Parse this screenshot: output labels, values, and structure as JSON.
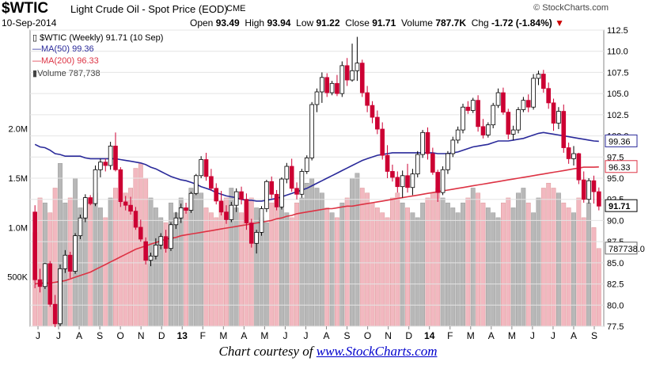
{
  "header": {
    "symbol": "$WTIC",
    "name": "Light Crude Oil - Spot Price (EOD)",
    "exchange": "CME",
    "brand": "© StockCharts.com",
    "date": "10-Sep-2014",
    "open_label": "Open",
    "open": "93.49",
    "high_label": "High",
    "high": "93.94",
    "low_label": "Low",
    "low": "91.22",
    "close_label": "Close",
    "close": "91.71",
    "volume_label": "Volume",
    "volume": "787.7K",
    "chg_label": "Chg",
    "chg": "-1.72 (-1.84%)",
    "chg_arrow": "▼"
  },
  "legend": {
    "main": "$WTIC (Weekly) 91.71 (10 Sep)",
    "ma50": "MA(50) 99.36",
    "ma200": "MA(200) 96.33",
    "volume": "Volume 787,738"
  },
  "credit": {
    "prefix": "Chart courtesy of ",
    "link": "www.StockCharts.com"
  },
  "colors": {
    "up": "#ffffff",
    "down": "#cc0033",
    "ma50": "#2a2a9a",
    "ma200": "#dd3344",
    "vol_up": "#b8b8b8",
    "vol_down": "#f2b8c0"
  },
  "chart_data": {
    "type": "candlestick",
    "ylim": [
      77.5,
      112.5
    ],
    "price_ticks": [
      "112.5",
      "110.0",
      "107.5",
      "105.0",
      "102.5",
      "100.0",
      "97.5",
      "95.0",
      "92.5",
      "90.0",
      "87.5",
      "85.0",
      "82.5",
      "80.0",
      "77.5"
    ],
    "volume_ticks": [
      "2.0M",
      "1.5M",
      "1.0M",
      "500K"
    ],
    "volume_ylim": [
      0,
      3000000
    ],
    "x_labels": [
      "J",
      "J",
      "A",
      "S",
      "O",
      "N",
      "D",
      "13",
      "F",
      "M",
      "A",
      "M",
      "J",
      "J",
      "A",
      "S",
      "O",
      "N",
      "D",
      "14",
      "F",
      "M",
      "A",
      "M",
      "J",
      "J",
      "A",
      "S"
    ],
    "price_flags": {
      "ma50": "99.36",
      "ma200": "96.33",
      "close": "91.71",
      "volume": "787738.0"
    },
    "series": [
      {
        "name": "$WTIC",
        "ohlc": [
          [
            91.0,
            91.8,
            82.0,
            83.0
          ],
          [
            83.0,
            84.3,
            81.5,
            82.2
          ],
          [
            82.2,
            85.0,
            81.9,
            84.9
          ],
          [
            84.9,
            85.2,
            79.8,
            80.1
          ],
          [
            80.1,
            81.2,
            77.4,
            77.8
          ],
          [
            77.8,
            84.8,
            77.5,
            84.3
          ],
          [
            84.3,
            86.5,
            83.8,
            85.9
          ],
          [
            85.9,
            86.3,
            83.2,
            84.0
          ],
          [
            84.0,
            88.5,
            83.7,
            88.2
          ],
          [
            88.2,
            90.7,
            87.8,
            90.3
          ],
          [
            90.3,
            93.1,
            89.8,
            92.7
          ],
          [
            92.7,
            93.0,
            91.8,
            92.0
          ],
          [
            92.0,
            96.5,
            91.7,
            96.0
          ],
          [
            96.0,
            97.3,
            95.1,
            96.9
          ],
          [
            96.9,
            97.3,
            95.8,
            96.5
          ],
          [
            96.5,
            99.3,
            96.0,
            98.8
          ],
          [
            98.8,
            100.4,
            95.8,
            96.0
          ],
          [
            96.0,
            96.3,
            91.6,
            92.2
          ],
          [
            92.2,
            92.9,
            91.2,
            91.8
          ],
          [
            91.8,
            92.8,
            90.7,
            91.1
          ],
          [
            91.1,
            91.6,
            88.9,
            89.2
          ],
          [
            89.2,
            90.1,
            87.5,
            87.8
          ],
          [
            87.5,
            88.0,
            84.8,
            85.3
          ],
          [
            85.3,
            86.2,
            84.6,
            85.8
          ],
          [
            85.8,
            87.9,
            85.4,
            87.1
          ],
          [
            87.1,
            88.5,
            86.6,
            88.1
          ],
          [
            88.1,
            88.9,
            86.2,
            86.7
          ],
          [
            86.7,
            89.8,
            86.4,
            89.5
          ],
          [
            89.5,
            91.0,
            89.0,
            90.3
          ],
          [
            90.3,
            92.0,
            89.7,
            91.5
          ],
          [
            91.5,
            92.1,
            90.8,
            91.2
          ],
          [
            91.2,
            93.4,
            90.9,
            93.2
          ],
          [
            93.2,
            95.5,
            93.0,
            95.3
          ],
          [
            95.3,
            97.6,
            95.0,
            97.2
          ],
          [
            97.2,
            98.0,
            94.7,
            95.2
          ],
          [
            95.2,
            96.1,
            93.5,
            93.8
          ],
          [
            93.8,
            94.4,
            91.9,
            92.3
          ],
          [
            92.3,
            93.5,
            90.6,
            91.0
          ],
          [
            91.0,
            91.8,
            89.6,
            90.1
          ],
          [
            90.1,
            92.2,
            89.8,
            91.8
          ],
          [
            91.8,
            93.8,
            91.0,
            93.4
          ],
          [
            93.4,
            94.0,
            91.9,
            92.5
          ],
          [
            92.5,
            93.2,
            88.9,
            89.7
          ],
          [
            89.7,
            90.2,
            86.8,
            87.3
          ],
          [
            87.3,
            88.9,
            86.1,
            88.6
          ],
          [
            88.6,
            91.7,
            88.2,
            91.4
          ],
          [
            91.4,
            94.8,
            91.0,
            94.6
          ],
          [
            94.6,
            95.2,
            92.6,
            93.1
          ],
          [
            93.1,
            93.6,
            91.2,
            91.6
          ],
          [
            91.6,
            95.1,
            91.3,
            94.9
          ],
          [
            94.9,
            96.8,
            94.4,
            96.4
          ],
          [
            96.4,
            97.3,
            93.4,
            93.8
          ],
          [
            93.8,
            94.5,
            92.5,
            93.1
          ],
          [
            93.1,
            96.1,
            92.7,
            95.8
          ],
          [
            95.8,
            97.7,
            95.5,
            97.4
          ],
          [
            97.4,
            104.0,
            97.1,
            103.7
          ],
          [
            103.7,
            105.6,
            102.8,
            105.2
          ],
          [
            105.2,
            107.5,
            103.9,
            106.9
          ],
          [
            106.9,
            107.4,
            104.6,
            105.1
          ],
          [
            105.1,
            106.5,
            104.8,
            106.2
          ],
          [
            106.2,
            107.2,
            104.7,
            105.0
          ],
          [
            105.0,
            108.8,
            104.6,
            108.3
          ],
          [
            108.3,
            109.2,
            105.9,
            106.6
          ],
          [
            106.6,
            110.9,
            106.4,
            107.7
          ],
          [
            107.7,
            111.7,
            106.5,
            108.6
          ],
          [
            108.6,
            109.0,
            104.6,
            105.1
          ],
          [
            105.1,
            105.9,
            102.8,
            103.6
          ],
          [
            103.6,
            104.1,
            101.5,
            102.2
          ],
          [
            102.2,
            103.0,
            100.2,
            100.8
          ],
          [
            100.8,
            101.6,
            97.2,
            97.7
          ],
          [
            97.7,
            98.9,
            95.0,
            95.8
          ],
          [
            95.8,
            96.6,
            94.6,
            95.1
          ],
          [
            95.1,
            95.8,
            93.3,
            94.0
          ],
          [
            94.0,
            95.9,
            92.7,
            95.3
          ],
          [
            95.3,
            96.7,
            93.3,
            93.9
          ],
          [
            93.9,
            96.1,
            93.0,
            95.5
          ],
          [
            95.5,
            98.2,
            95.1,
            97.8
          ],
          [
            97.8,
            100.7,
            97.4,
            100.4
          ],
          [
            100.4,
            101.0,
            97.2,
            97.9
          ],
          [
            97.9,
            98.6,
            95.4,
            95.7
          ],
          [
            95.7,
            96.0,
            92.2,
            93.3
          ],
          [
            93.3,
            96.4,
            93.0,
            96.0
          ],
          [
            96.0,
            98.2,
            95.5,
            97.9
          ],
          [
            97.9,
            99.9,
            97.5,
            99.5
          ],
          [
            99.5,
            101.1,
            99.1,
            100.7
          ],
          [
            100.7,
            103.8,
            100.3,
            103.4
          ],
          [
            103.4,
            104.1,
            102.6,
            103.0
          ],
          [
            103.0,
            104.5,
            102.7,
            104.2
          ],
          [
            104.2,
            104.8,
            100.5,
            101.1
          ],
          [
            101.1,
            102.0,
            99.7,
            100.1
          ],
          [
            100.1,
            101.6,
            99.8,
            101.3
          ],
          [
            101.3,
            103.9,
            100.9,
            103.6
          ],
          [
            103.6,
            105.6,
            103.3,
            105.1
          ],
          [
            105.1,
            105.7,
            102.5,
            102.8
          ],
          [
            102.8,
            103.2,
            99.6,
            100.2
          ],
          [
            100.2,
            101.2,
            99.5,
            100.7
          ],
          [
            100.7,
            103.4,
            100.3,
            103.1
          ],
          [
            103.1,
            104.6,
            102.8,
            104.2
          ],
          [
            104.2,
            104.9,
            102.8,
            103.4
          ],
          [
            103.4,
            107.3,
            103.1,
            106.8
          ],
          [
            106.8,
            107.7,
            106.0,
            107.3
          ],
          [
            107.3,
            107.8,
            105.1,
            105.6
          ],
          [
            105.6,
            106.3,
            103.2,
            103.9
          ],
          [
            103.9,
            104.4,
            100.6,
            101.5
          ],
          [
            101.5,
            103.4,
            100.8,
            102.9
          ],
          [
            102.9,
            103.7,
            98.0,
            98.6
          ],
          [
            98.6,
            99.2,
            96.7,
            97.3
          ],
          [
            97.3,
            98.8,
            96.5,
            97.9
          ],
          [
            97.9,
            98.0,
            94.3,
            94.8
          ],
          [
            94.8,
            95.8,
            92.1,
            92.5
          ],
          [
            92.5,
            95.0,
            92.0,
            94.7
          ],
          [
            94.7,
            95.3,
            92.0,
            93.4
          ],
          [
            93.4,
            93.9,
            91.2,
            91.7
          ]
        ],
        "ma50": [
          99.0,
          98.7,
          98.6,
          98.3,
          97.9,
          97.8,
          97.6,
          97.6,
          97.6,
          97.6,
          97.4,
          97.3,
          97.3,
          97.3,
          97.3,
          97.3,
          97.3,
          97.2,
          97.1,
          97.0,
          96.9,
          96.8,
          96.6,
          96.3,
          96.1,
          95.8,
          95.5,
          95.2,
          95.0,
          94.8,
          94.7,
          94.5,
          94.3,
          94.0,
          93.8,
          93.6,
          93.3,
          93.1,
          92.9,
          92.8,
          92.7,
          92.5,
          92.4,
          92.4,
          92.3,
          92.3,
          92.4,
          92.5,
          92.6,
          92.8,
          93.0,
          93.2,
          93.4,
          93.6,
          93.8,
          94.1,
          94.4,
          94.7,
          95.0,
          95.3,
          95.6,
          95.9,
          96.2,
          96.5,
          96.8,
          97.1,
          97.3,
          97.5,
          97.7,
          97.8,
          97.9,
          98.0,
          98.0,
          98.0,
          98.0,
          98.0,
          98.0,
          98.0,
          98.0,
          98.0,
          97.9,
          97.9,
          97.9,
          98.0,
          98.1,
          98.3,
          98.5,
          98.7,
          98.8,
          98.9,
          99.0,
          99.2,
          99.4,
          99.4,
          99.4,
          99.5,
          99.6,
          99.7,
          99.9,
          100.1,
          100.3,
          100.4,
          100.3,
          100.2,
          100.1,
          100.0,
          99.9,
          99.8,
          99.7,
          99.6,
          99.5,
          99.4,
          99.36
        ],
        "ma200": [
          82.5,
          82.6,
          82.6,
          82.6,
          82.7,
          82.8,
          82.9,
          83.1,
          83.3,
          83.5,
          83.7,
          83.9,
          84.2,
          84.5,
          84.8,
          85.1,
          85.4,
          85.7,
          86.0,
          86.3,
          86.6,
          86.8,
          87.0,
          87.2,
          87.4,
          87.6,
          87.8,
          87.9,
          88.0,
          88.2,
          88.3,
          88.4,
          88.5,
          88.6,
          88.7,
          88.8,
          88.9,
          89.0,
          89.1,
          89.2,
          89.3,
          89.4,
          89.5,
          89.6,
          89.7,
          89.8,
          89.9,
          90.0,
          90.2,
          90.3,
          90.5,
          90.6,
          90.8,
          90.9,
          91.0,
          91.1,
          91.2,
          91.3,
          91.4,
          91.4,
          91.5,
          91.6,
          91.7,
          91.7,
          91.8,
          91.9,
          92.0,
          92.1,
          92.2,
          92.3,
          92.4,
          92.5,
          92.6,
          92.7,
          92.8,
          92.9,
          93.0,
          93.1,
          93.2,
          93.3,
          93.4,
          93.5,
          93.6,
          93.7,
          93.8,
          93.9,
          94.0,
          94.1,
          94.2,
          94.3,
          94.4,
          94.5,
          94.6,
          94.7,
          94.8,
          94.9,
          95.0,
          95.1,
          95.2,
          95.3,
          95.4,
          95.5,
          95.6,
          95.7,
          95.8,
          95.9,
          96.0,
          96.1,
          96.2,
          96.3,
          96.3,
          96.3,
          96.33
        ]
      },
      {
        "name": "Volume",
        "values": [
          950000,
          1300000,
          1250000,
          1150000,
          1400000,
          1650000,
          1250000,
          1300000,
          1500000,
          1200000,
          1300000,
          1250000,
          1350000,
          1200000,
          1100000,
          1300000,
          1400000,
          1250000,
          1350000,
          1400000,
          1600000,
          1650000,
          1500000,
          1300000,
          1200000,
          1100000,
          1050000,
          1250000,
          1150000,
          1300000,
          1200000,
          1400000,
          1450000,
          1350000,
          1200000,
          1150000,
          1100000,
          1250000,
          1300000,
          1400000,
          1200000,
          1150000,
          1250000,
          1300000,
          1200000,
          1100000,
          1050000,
          1250000,
          1300000,
          1200000,
          1150000,
          1100000,
          1250000,
          1300000,
          1450000,
          1500000,
          1400000,
          1350000,
          1200000,
          1150000,
          1100000,
          1250000,
          1300000,
          1500000,
          1550000,
          1400000,
          1350000,
          1250000,
          1200000,
          1150000,
          1100000,
          1300000,
          1350000,
          1250000,
          1200000,
          1150000,
          1100000,
          1250000,
          1300000,
          1350000,
          1400000,
          1300000,
          1250000,
          1200000,
          1150000,
          1250000,
          1300000,
          1400000,
          1350000,
          1250000,
          1200000,
          1150000,
          1100000,
          1250000,
          1300000,
          1200000,
          1350000,
          1400000,
          1250000,
          1150000,
          1300000,
          1400000,
          1450000,
          1400000,
          1350000,
          1250000,
          1200000,
          1150000,
          1300000,
          1100000,
          1250000,
          1000000,
          787738
        ]
      }
    ]
  }
}
